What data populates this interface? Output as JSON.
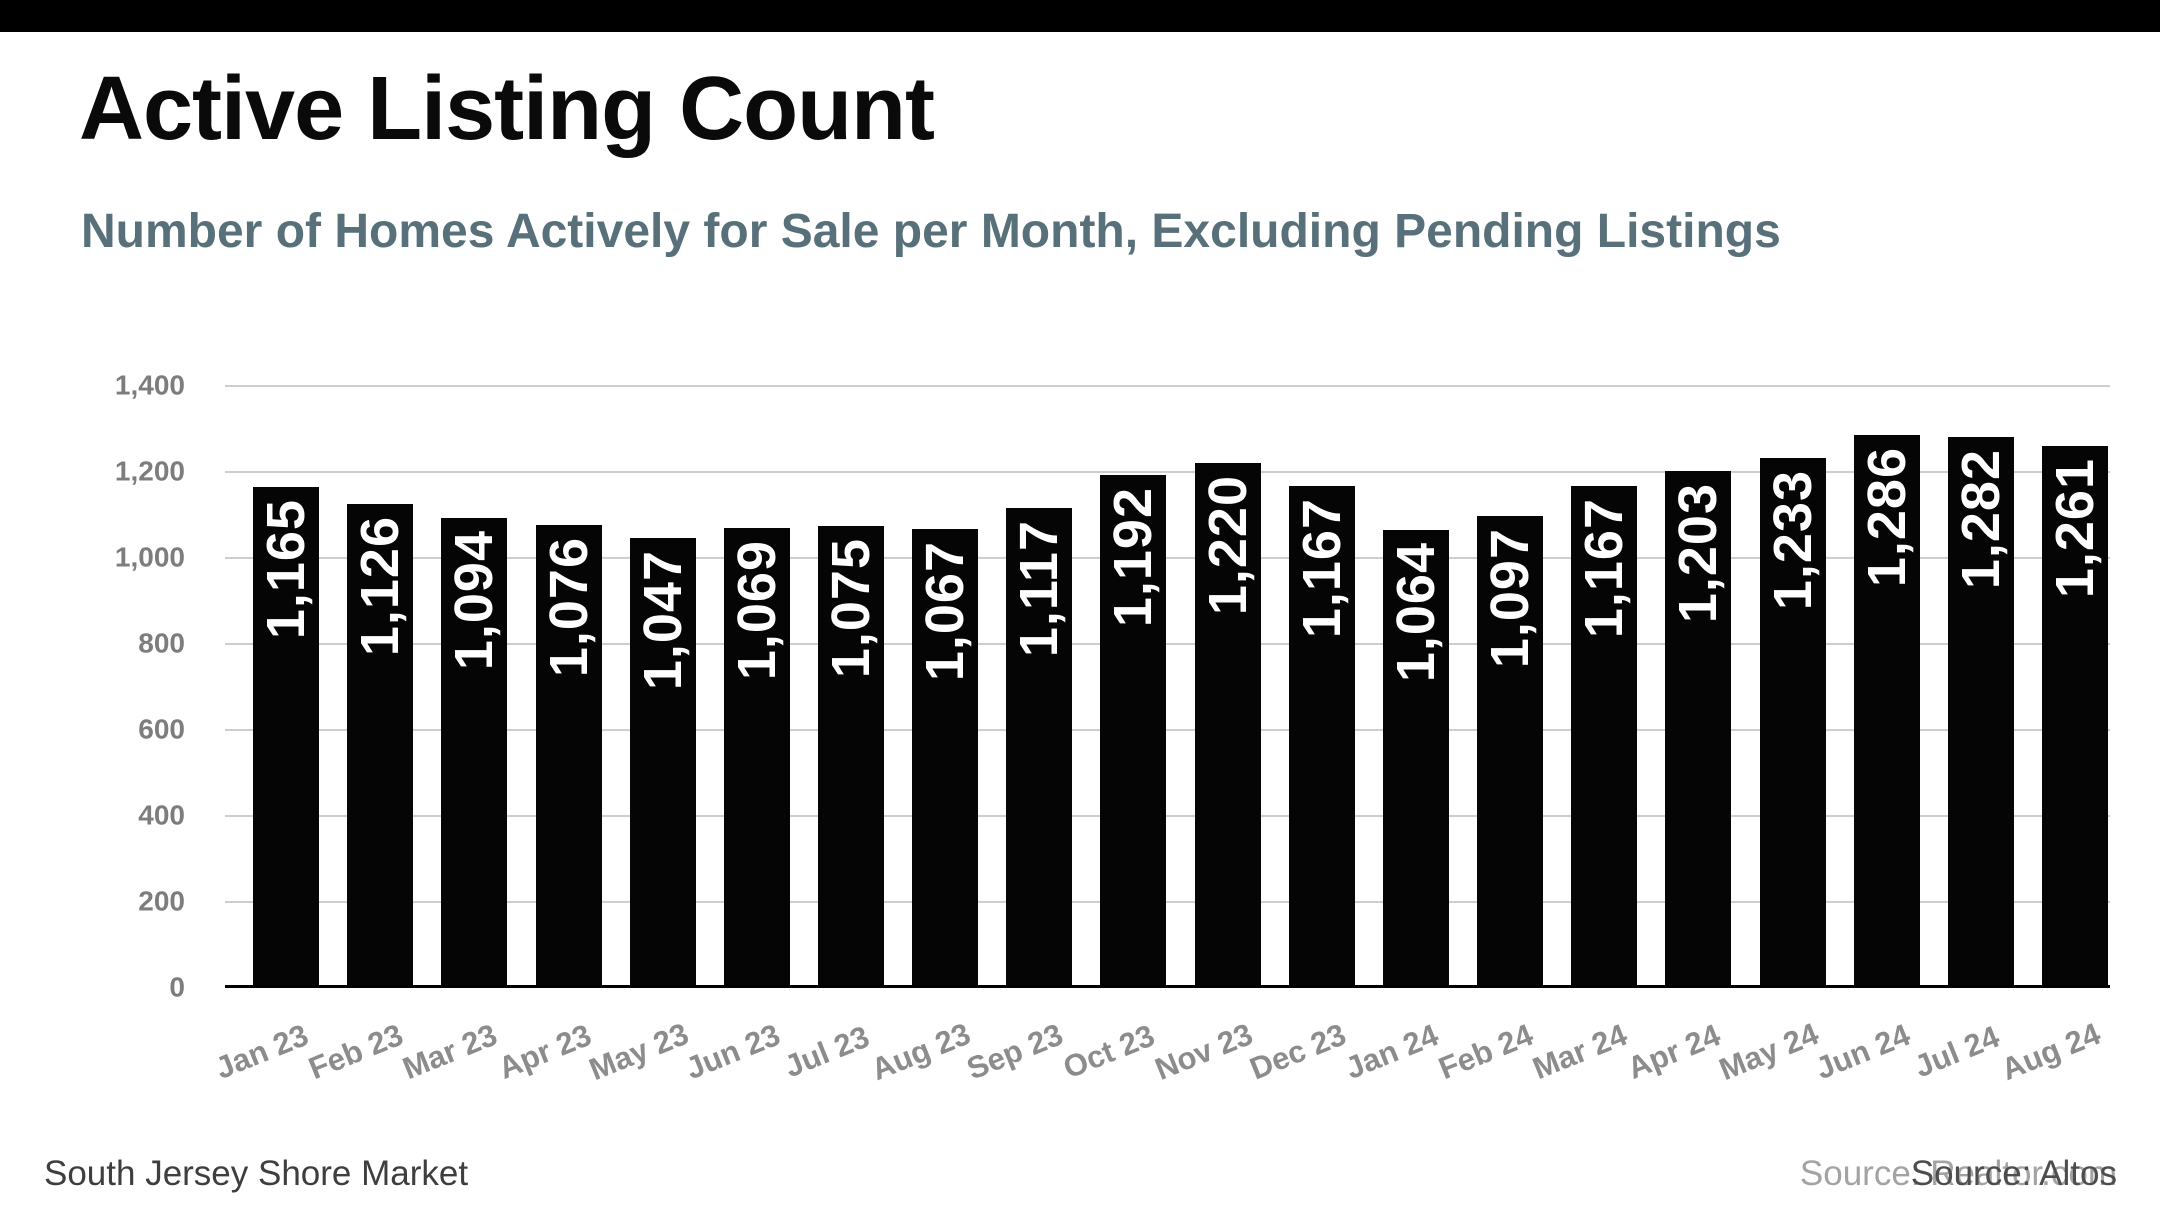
{
  "header": {
    "title": "Active Listing Count",
    "subtitle": "Number of Homes Actively for Sale per Month, Excluding Pending Listings"
  },
  "footer": {
    "market": "South Jersey Shore Market",
    "source_light": "Source: Realtor.com",
    "source_dark": "Source: Altos"
  },
  "colors": {
    "topbar": "#000000",
    "title": "#0a0a0a",
    "subtitle": "#587079",
    "bar": "#050505",
    "value_label": "#ffffff",
    "gridline": "#cdcdcd",
    "axis_line": "#000000",
    "y_tick_label": "#7d7d7d",
    "month_label": "#8c8c8c",
    "footer_left": "#3e3e3e",
    "source_light": "#a3a3a3",
    "source_dark": "#4d4d4d",
    "background": "#ffffff"
  },
  "chart_data": {
    "type": "bar",
    "title": "Active Listing Count",
    "subtitle": "Number of Homes Actively for Sale per Month, Excluding Pending Listings",
    "categories": [
      "Jan 23",
      "Feb 23",
      "Mar 23",
      "Apr 23",
      "May 23",
      "Jun 23",
      "Jul 23",
      "Aug 23",
      "Sep 23",
      "Oct 23",
      "Nov 23",
      "Dec 23",
      "Jan 24",
      "Feb 24",
      "Mar 24",
      "Apr 24",
      "May 24",
      "Jun 24",
      "Jul 24",
      "Aug 24"
    ],
    "values": [
      1165,
      1126,
      1094,
      1076,
      1047,
      1069,
      1075,
      1067,
      1117,
      1192,
      1220,
      1167,
      1064,
      1097,
      1167,
      1203,
      1233,
      1286,
      1282,
      1261
    ],
    "value_labels": [
      "1,165",
      "1,126",
      "1,094",
      "1,076",
      "1,047",
      "1,069",
      "1,075",
      "1,067",
      "1,117",
      "1,192",
      "1,220",
      "1,167",
      "1,064",
      "1,097",
      "1,167",
      "1,203",
      "1,233",
      "1,286",
      "1,282",
      "1,261"
    ],
    "xlabel": "",
    "ylabel": "",
    "ylim": [
      0,
      1400
    ],
    "yticks": [
      0,
      200,
      400,
      600,
      800,
      1000,
      1200,
      1400
    ],
    "ytick_labels": [
      "0",
      "200",
      "400",
      "600",
      "800",
      "1,000",
      "1,200",
      "1,400"
    ],
    "grid": "horizontal",
    "legend": false,
    "bar_color": "#050505",
    "value_label_rotation": "bottom-to-top"
  }
}
